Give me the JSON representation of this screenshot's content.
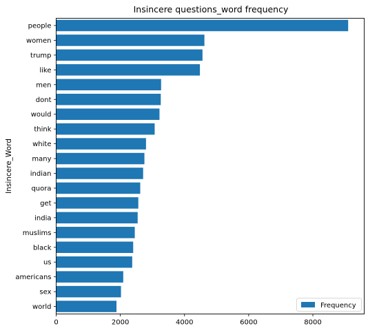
{
  "chart_data": {
    "type": "bar",
    "orientation": "horizontal",
    "title": "Insincere questions_word frequency",
    "xlabel": "",
    "ylabel": "Insincere_Word",
    "categories": [
      "people",
      "women",
      "trump",
      "like",
      "men",
      "dont",
      "would",
      "think",
      "white",
      "many",
      "indian",
      "quora",
      "get",
      "india",
      "muslims",
      "black",
      "us",
      "americans",
      "sex",
      "world"
    ],
    "series": [
      {
        "name": "Frequency",
        "color": "#1f77b4",
        "values": [
          9100,
          4620,
          4560,
          4480,
          3270,
          3260,
          3220,
          3070,
          2800,
          2750,
          2710,
          2620,
          2560,
          2540,
          2450,
          2400,
          2370,
          2090,
          2020,
          1880
        ]
      }
    ],
    "xlim": [
      0,
      9600
    ],
    "xticks": [
      0,
      2000,
      4000,
      6000,
      8000
    ],
    "xtick_labels": [
      "0",
      "2000",
      "4000",
      "6000",
      "8000"
    ],
    "grid": false,
    "legend_position": "lower-right"
  }
}
